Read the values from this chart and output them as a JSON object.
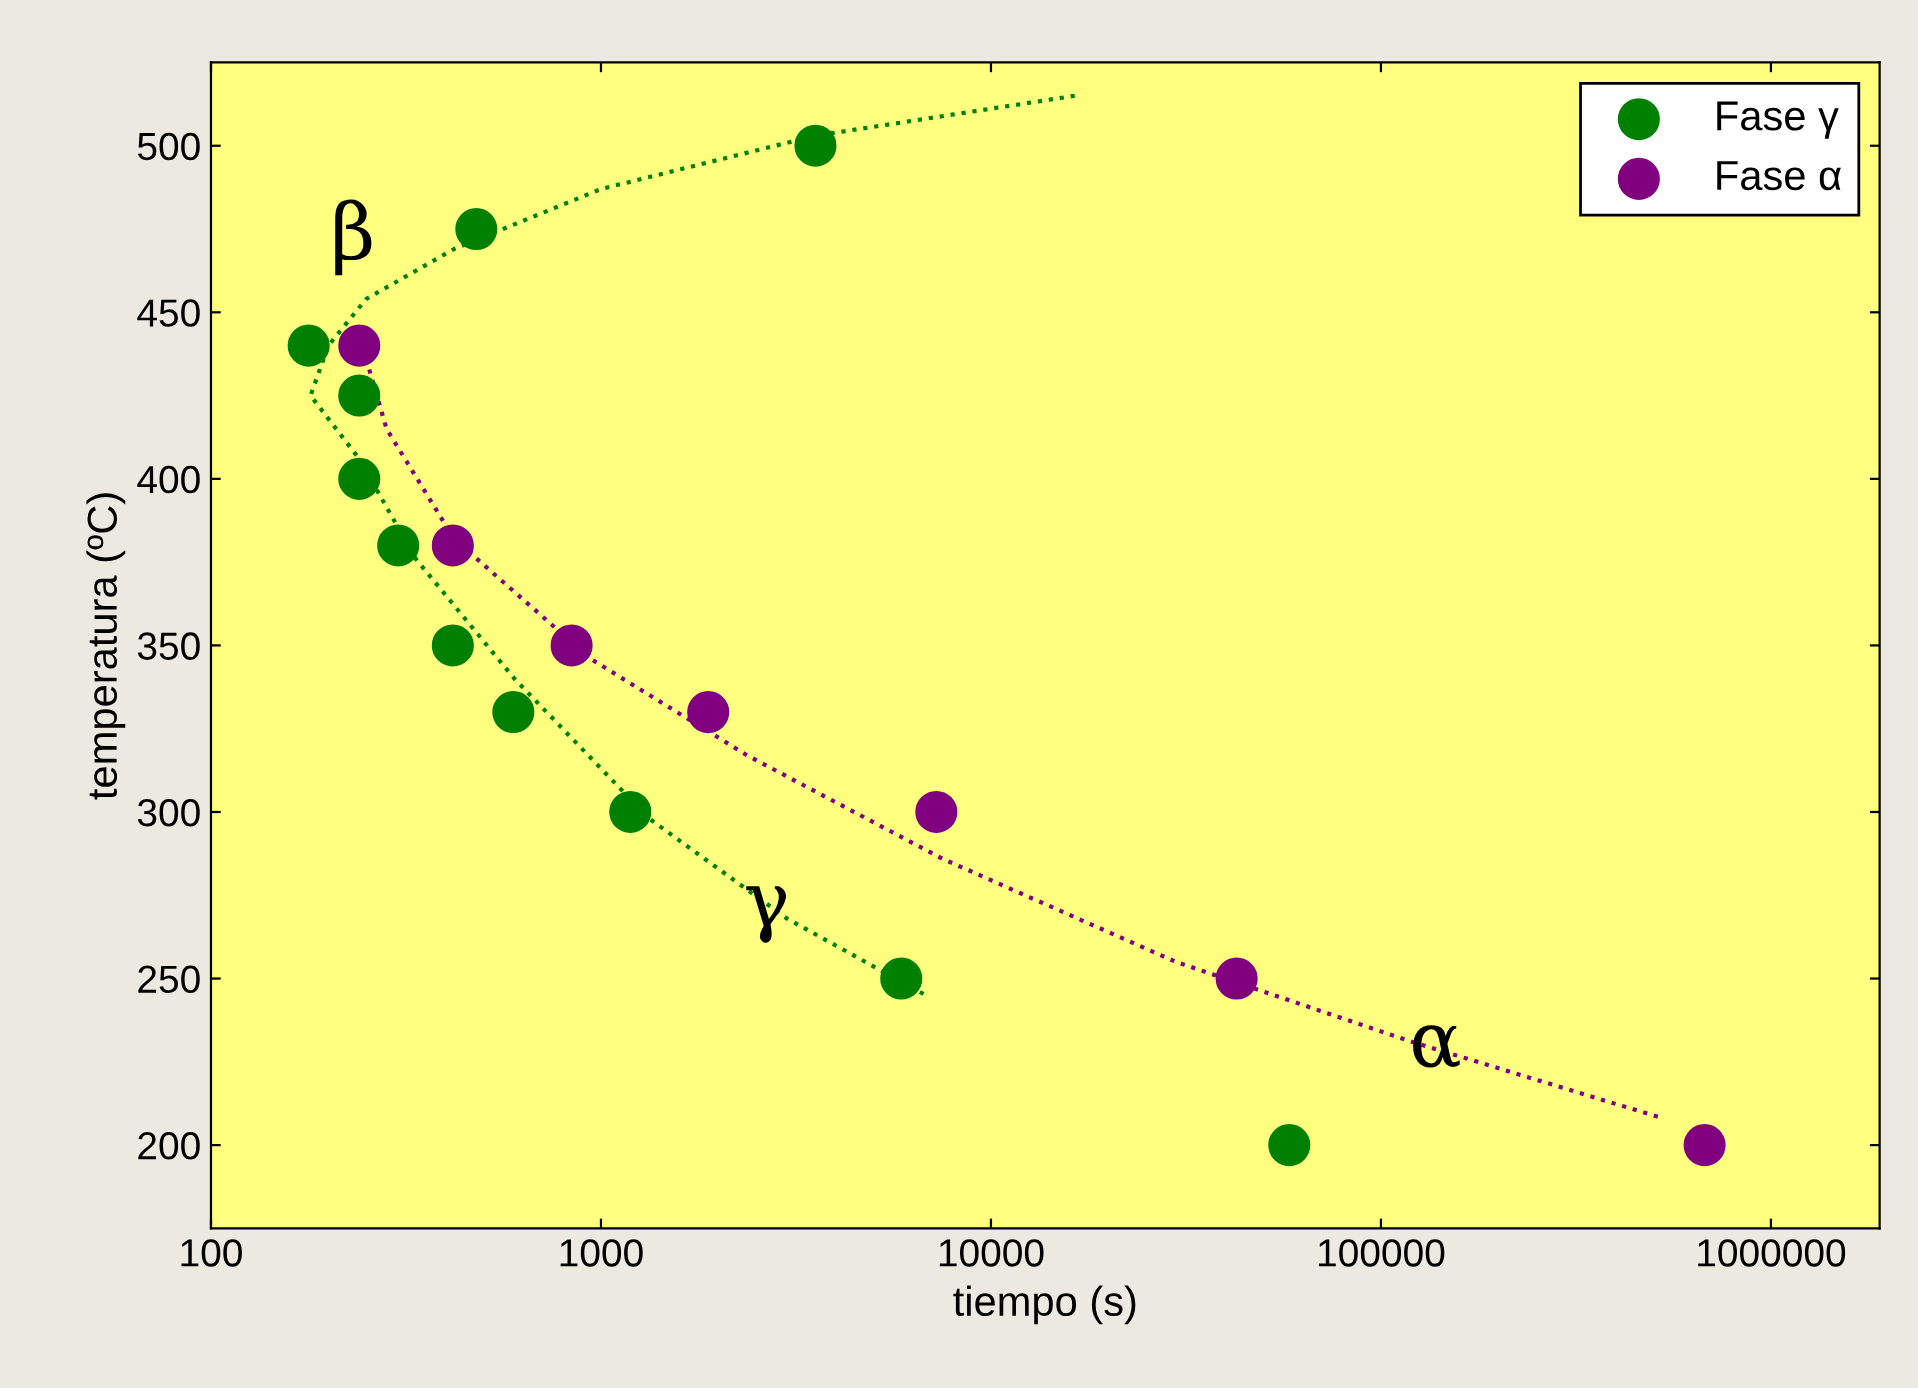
{
  "chart_data": {
    "type": "scatter",
    "xlabel": "tiempo (s)",
    "ylabel": "temperatura (ºC)",
    "log": "x",
    "xlim": [
      100,
      1900000
    ],
    "ylim": [
      175,
      525
    ],
    "xticks": [
      100,
      1000,
      10000,
      100000,
      1000000
    ],
    "yticks": [
      200,
      250,
      300,
      350,
      400,
      450,
      500
    ],
    "grid": false,
    "legend": "top right",
    "series": [
      {
        "name": "Fase γ",
        "marker": "circle",
        "color": "#008000",
        "x": [
          178,
          240,
          240,
          302,
          417,
          596,
          1189,
          5888,
          58210,
          479,
          3548
        ],
        "values": [
          440,
          425,
          400,
          380,
          350,
          330,
          300,
          250,
          200,
          475,
          500
        ]
      },
      {
        "name": "Fase α",
        "marker": "circle",
        "color": "#800080",
        "x": [
          240,
          417,
          841,
          1884,
          7244,
          42658,
          676000
        ],
        "values": [
          440,
          380,
          350,
          330,
          300,
          250,
          200
        ]
      },
      {
        "type": "line",
        "line_style": "dotted",
        "color": "#008000",
        "x": [
          16400,
          3548,
          1000,
          420,
          250,
          200,
          180,
          240,
          335,
          600,
          1330,
          3000,
          6800
        ],
        "values": [
          515,
          503,
          487,
          469,
          454,
          440,
          425,
          406,
          376,
          340,
          298,
          268,
          245
        ]
      },
      {
        "type": "line",
        "line_style": "dotted",
        "color": "#800080",
        "x": [
          250,
          282,
          420,
          940,
          2370,
          7500,
          29800,
          120000,
          530000
        ],
        "values": [
          436,
          415,
          382,
          346,
          317,
          286,
          255,
          231,
          208
        ]
      }
    ],
    "annotations": [
      "β",
      {
        "text": "γ",
        "x": 2660,
        "y": 272
      },
      {
        "text": "α",
        "x": 138000,
        "y": 230
      }
    ]
  }
}
